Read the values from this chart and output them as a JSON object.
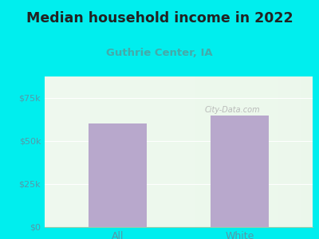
{
  "title": "Median household income in 2022",
  "subtitle": "Guthrie Center, IA",
  "categories": [
    "All",
    "White"
  ],
  "values": [
    60000,
    65000
  ],
  "bar_color": "#b8a8cc",
  "background_color": "#00EEEE",
  "title_fontsize": 12.5,
  "title_color": "#222222",
  "subtitle_fontsize": 9.5,
  "subtitle_color": "#44aaaa",
  "tick_color": "#5599aa",
  "ylim": [
    0,
    87500
  ],
  "yticks": [
    0,
    25000,
    50000,
    75000
  ],
  "ytick_labels": [
    "$0",
    "$25k",
    "$50k",
    "$75k"
  ],
  "watermark": "City-Data.com",
  "bar_width": 0.48
}
